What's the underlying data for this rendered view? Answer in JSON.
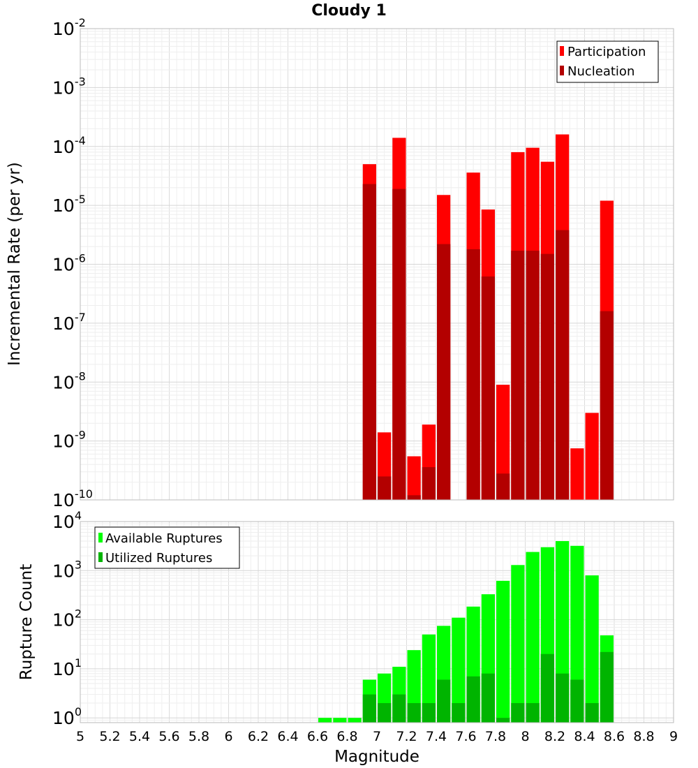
{
  "colors": {
    "participation": "#ff0000",
    "nucleation": "#b30000",
    "available": "#00ff00",
    "utilized": "#00b400",
    "grid": "#e6e6e6",
    "frame": "#bbbbbb"
  },
  "chart_data": [
    {
      "type": "bar",
      "title": "Cloudy 1",
      "xlabel": "",
      "ylabel": "Incremental Rate (per yr)",
      "yscale": "log",
      "ylim": [
        1e-10,
        0.01
      ],
      "xlim": [
        5,
        9
      ],
      "bar_width": 0.1,
      "yticks": [
        {
          "base": "10",
          "exp": "-10",
          "value": 1e-10
        },
        {
          "base": "10",
          "exp": "-9",
          "value": 1e-09
        },
        {
          "base": "10",
          "exp": "-8",
          "value": 1e-08
        },
        {
          "base": "10",
          "exp": "-7",
          "value": 1e-07
        },
        {
          "base": "10",
          "exp": "-6",
          "value": 1e-06
        },
        {
          "base": "10",
          "exp": "-5",
          "value": 1e-05
        },
        {
          "base": "10",
          "exp": "-4",
          "value": 0.0001
        },
        {
          "base": "10",
          "exp": "-3",
          "value": 0.001
        },
        {
          "base": "10",
          "exp": "-2",
          "value": 0.01
        }
      ],
      "legend": {
        "position": "top-right",
        "entries": [
          "Participation",
          "Nucleation"
        ]
      },
      "x": [
        6.95,
        7.05,
        7.15,
        7.25,
        7.35,
        7.45,
        7.65,
        7.75,
        7.85,
        7.95,
        8.05,
        8.15,
        8.25,
        8.35,
        8.45,
        8.55
      ],
      "series": [
        {
          "name": "Participation",
          "values": [
            5e-05,
            1.4e-09,
            0.00014,
            5.5e-10,
            1.9e-09,
            1.5e-05,
            3.6e-05,
            8.5e-06,
            9e-09,
            8e-05,
            9.5e-05,
            5.5e-05,
            0.00016,
            7.5e-10,
            3e-09,
            1.2e-05
          ]
        },
        {
          "name": "Nucleation",
          "values": [
            2.3e-05,
            2.5e-10,
            1.9e-05,
            1.2e-10,
            3.6e-10,
            2.2e-06,
            1.8e-06,
            6.2e-07,
            2.8e-10,
            1.7e-06,
            1.7e-06,
            1.5e-06,
            3.8e-06,
            null,
            null,
            1.6e-07
          ]
        }
      ]
    },
    {
      "type": "bar",
      "title": "",
      "xlabel": "Magnitude",
      "ylabel": "Rupture Count",
      "yscale": "log",
      "ylim": [
        0.8,
        10000
      ],
      "xlim": [
        5,
        9
      ],
      "bar_width": 0.1,
      "xticks": [
        "5",
        "5.2",
        "5.4",
        "5.6",
        "5.8",
        "6",
        "6.2",
        "6.4",
        "6.6",
        "6.8",
        "7",
        "7.2",
        "7.4",
        "7.6",
        "7.8",
        "8",
        "8.2",
        "8.4",
        "8.6",
        "8.8",
        "9"
      ],
      "yticks": [
        {
          "base": "10",
          "exp": "0",
          "value": 1
        },
        {
          "base": "10",
          "exp": "1",
          "value": 10
        },
        {
          "base": "10",
          "exp": "2",
          "value": 100
        },
        {
          "base": "10",
          "exp": "3",
          "value": 1000
        },
        {
          "base": "10",
          "exp": "4",
          "value": 10000
        }
      ],
      "legend": {
        "position": "top-left",
        "entries": [
          "Available Ruptures",
          "Utilized Ruptures"
        ]
      },
      "x": [
        6.65,
        6.75,
        6.85,
        6.95,
        7.05,
        7.15,
        7.25,
        7.35,
        7.45,
        7.55,
        7.65,
        7.75,
        7.85,
        7.95,
        8.05,
        8.15,
        8.25,
        8.35,
        8.45,
        8.55
      ],
      "series": [
        {
          "name": "Available Ruptures",
          "values": [
            1,
            1,
            1,
            6,
            8,
            11,
            24,
            50,
            75,
            110,
            185,
            330,
            620,
            1300,
            2400,
            3000,
            4000,
            3200,
            800,
            48
          ]
        },
        {
          "name": "Utilized Ruptures",
          "values": [
            null,
            null,
            null,
            3,
            2,
            3,
            2,
            2,
            6,
            2,
            7,
            8,
            1,
            2,
            2,
            20,
            8,
            6,
            2,
            22
          ]
        }
      ]
    }
  ]
}
